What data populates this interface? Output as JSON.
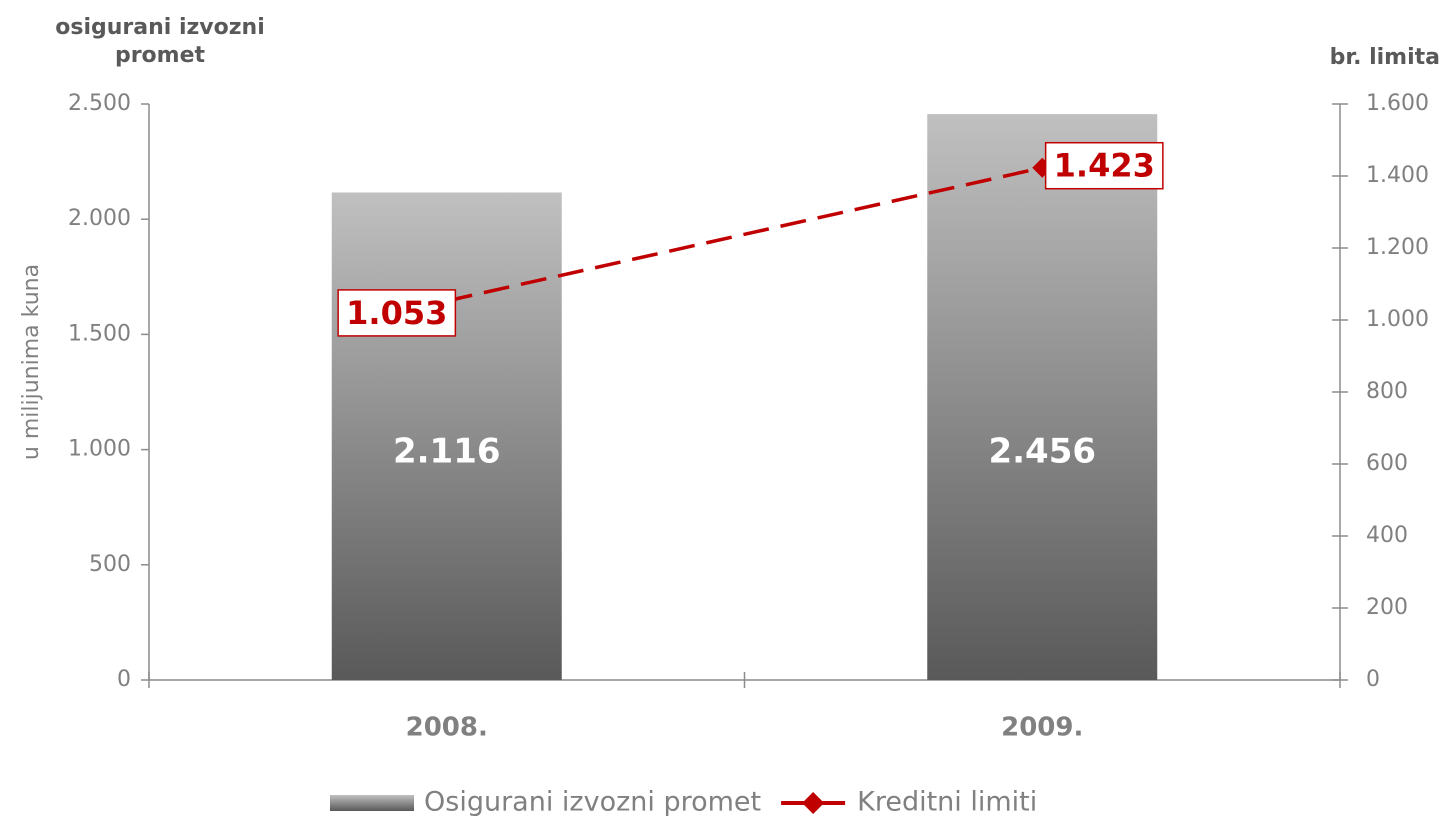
{
  "chart_data": {
    "type": "bar",
    "y_title": "osigurani izvozni promet",
    "y_label": "u milijunima kuna",
    "y2_title": "br. limita",
    "categories": [
      "2008.",
      "2009."
    ],
    "series": [
      {
        "name": "Osigurani izvozni promet",
        "type": "bar",
        "color": "#595959",
        "values": [
          2116,
          2456
        ],
        "value_labels": [
          "2.116",
          "2.456"
        ]
      },
      {
        "name": "Kreditni limiti",
        "type": "line",
        "axis": "y2",
        "color": "#c00000",
        "values": [
          1053,
          1423
        ],
        "value_labels": [
          "1.053",
          "1.423"
        ]
      }
    ],
    "ylim": [
      0,
      2500
    ],
    "yticks": [
      0,
      500,
      {
        "value": 1000,
        "label": "1.000"
      },
      {
        "value": 1500,
        "label": "1.500"
      },
      {
        "value": 2000,
        "label": "2.000"
      },
      {
        "value": 2500,
        "label": "2.500"
      }
    ],
    "y2lim": [
      0,
      1600
    ],
    "y2ticks": [
      0,
      200,
      400,
      600,
      800,
      {
        "value": 1000,
        "label": "1.000"
      },
      {
        "value": 1200,
        "label": "1.200"
      },
      {
        "value": 1400,
        "label": "1.400"
      },
      {
        "value": 1600,
        "label": "1.600"
      }
    ],
    "grid": false,
    "legend": "bottom"
  }
}
